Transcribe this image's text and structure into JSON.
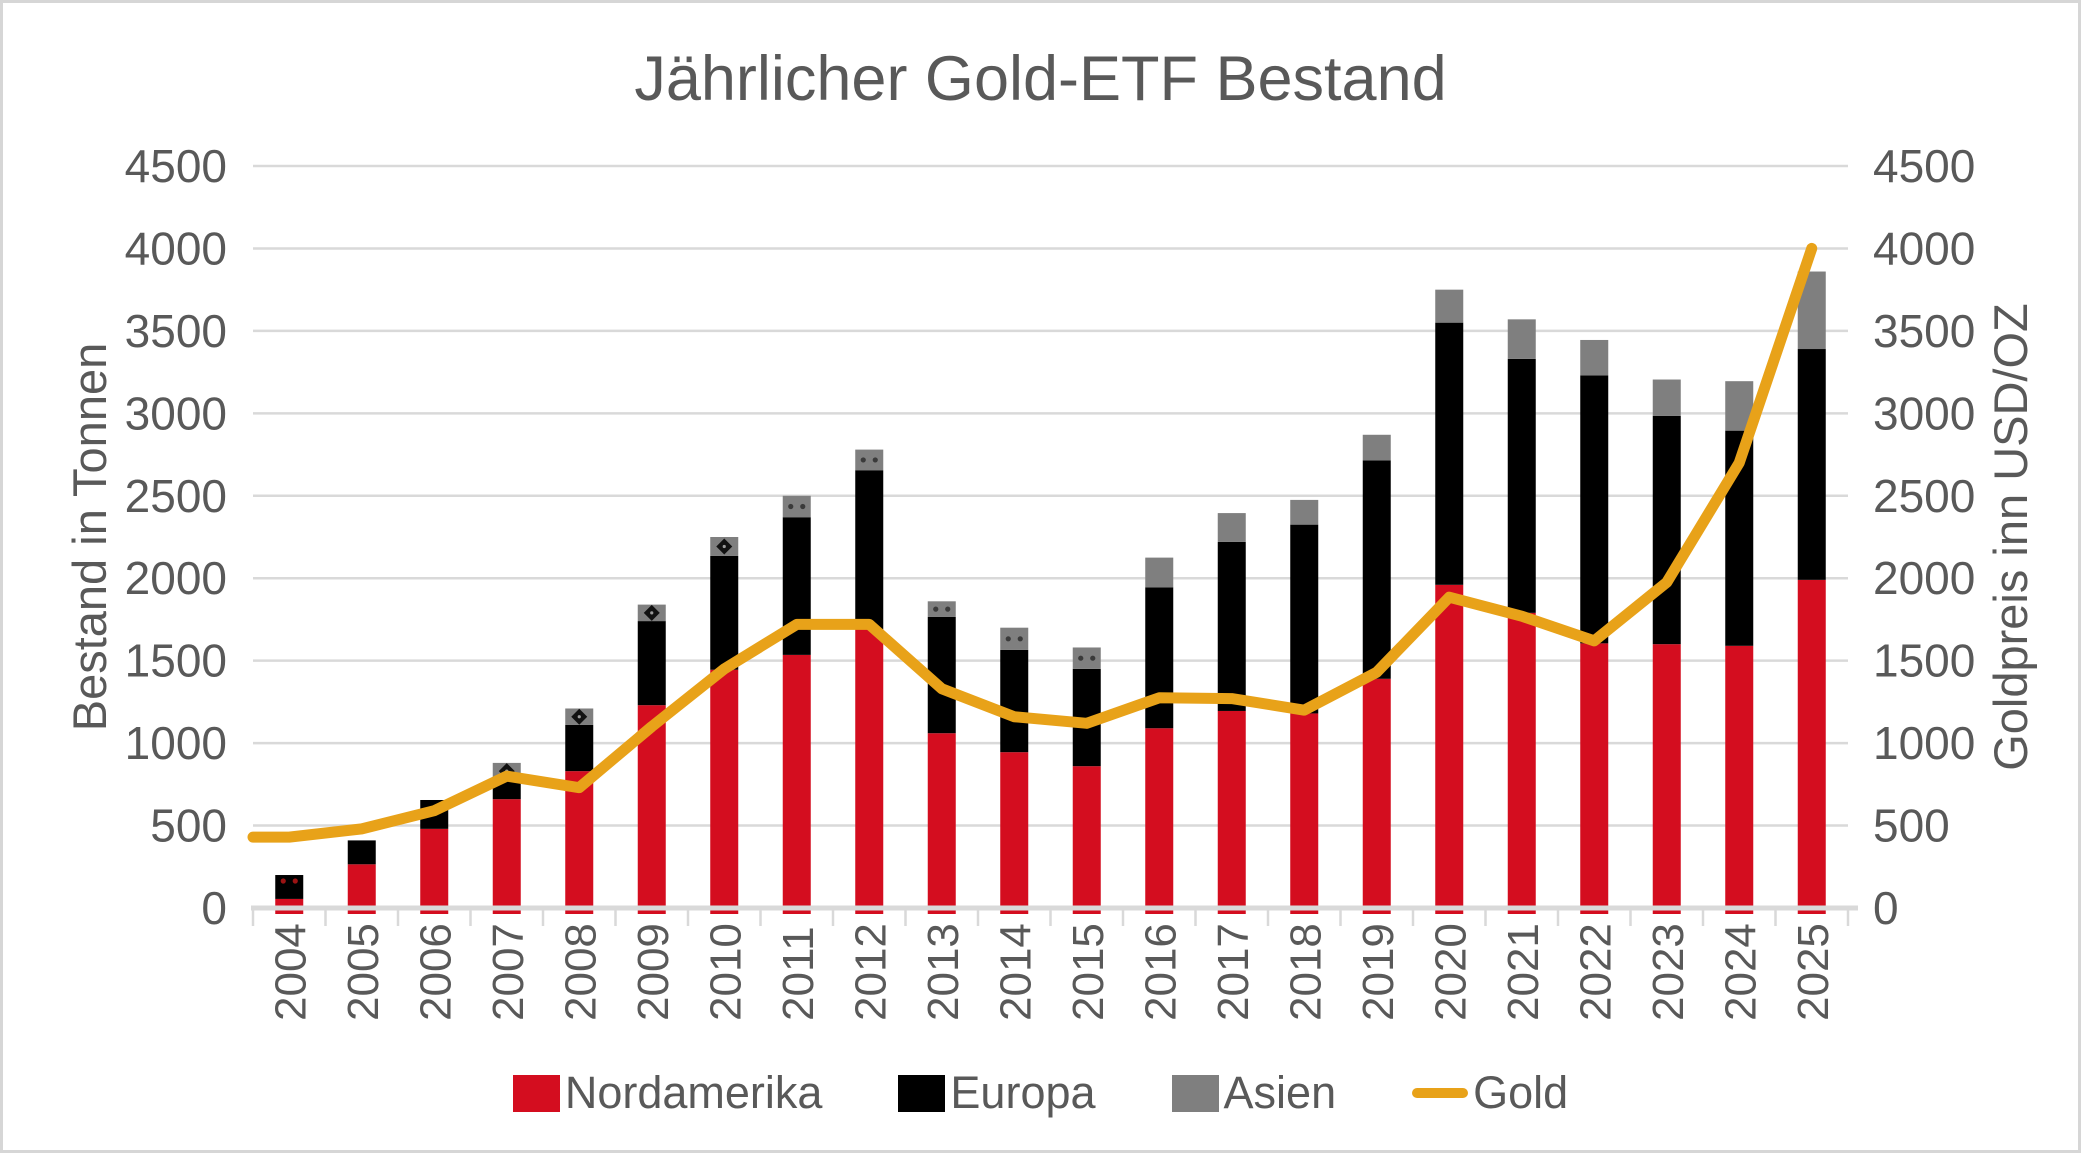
{
  "title": "Jährlicher Gold-ETF Bestand",
  "axes": {
    "left_title": "Bestand in Tonnen",
    "right_title": "Goldpreis inn USD/OZ"
  },
  "legend": {
    "items": [
      {
        "label": "Nordamerika",
        "color": "#D40D1F",
        "type": "box"
      },
      {
        "label": "Europa",
        "color": "#000000",
        "type": "box"
      },
      {
        "label": "Asien",
        "color": "#7F7F7F",
        "type": "box"
      },
      {
        "label": "Gold",
        "color": "#E8A219",
        "type": "line"
      }
    ]
  },
  "colors": {
    "background": "#FFFFFF",
    "frame_border": "#D6D6D6",
    "gridline": "#D9D9D9",
    "text": "#595959",
    "nordamerika": "#D40D1F",
    "europa": "#000000",
    "asien": "#7F7F7F",
    "gold": "#E8A219"
  },
  "chart_data": {
    "type": "bar",
    "subtype": "stacked-bar-with-line",
    "title": "Jährlicher Gold-ETF Bestand",
    "xlabel": "",
    "ylabel_left": "Bestand in Tonnen",
    "ylabel_right": "Goldpreis inn USD/OZ",
    "ylim": [
      0,
      4500
    ],
    "ylim_right": [
      0,
      4500
    ],
    "ytick_step": 500,
    "yticks": [
      0,
      500,
      1000,
      1500,
      2000,
      2500,
      3000,
      3500,
      4000,
      4500
    ],
    "grid": true,
    "legend_position": "bottom",
    "categories": [
      "2004",
      "2005",
      "2006",
      "2007",
      "2008",
      "2009",
      "2010",
      "2011",
      "2012",
      "2013",
      "2014",
      "2015",
      "2016",
      "2017",
      "2018",
      "2019",
      "2020",
      "2021",
      "2022",
      "2023",
      "2024",
      "2025"
    ],
    "series": [
      {
        "name": "Nordamerika",
        "type": "bar",
        "stack": true,
        "color": "#D40D1F",
        "axis": "left",
        "values": [
          55,
          265,
          480,
          660,
          830,
          1230,
          1445,
          1535,
          1690,
          1060,
          945,
          860,
          1090,
          1195,
          1180,
          1390,
          1960,
          1790,
          1605,
          1600,
          1590,
          1990
        ]
      },
      {
        "name": "Europa",
        "type": "bar",
        "stack": true,
        "color": "#000000",
        "axis": "left",
        "values": [
          145,
          145,
          175,
          120,
          280,
          510,
          690,
          835,
          965,
          705,
          620,
          590,
          855,
          1025,
          1145,
          1325,
          1590,
          1540,
          1625,
          1385,
          1305,
          1400
        ]
      },
      {
        "name": "Asien",
        "type": "bar",
        "stack": true,
        "color": "#7F7F7F",
        "axis": "left",
        "values": [
          0,
          0,
          0,
          100,
          100,
          100,
          115,
          130,
          125,
          95,
          135,
          130,
          180,
          175,
          150,
          155,
          200,
          240,
          215,
          220,
          300,
          470
        ]
      },
      {
        "name": "Gold",
        "type": "line",
        "color": "#E8A219",
        "axis": "right",
        "values": [
          430,
          480,
          590,
          800,
          730,
          1100,
          1450,
          1720,
          1720,
          1330,
          1160,
          1120,
          1275,
          1270,
          1200,
          1430,
          1885,
          1770,
          1620,
          1975,
          2700,
          4000
        ]
      }
    ],
    "bar_top_markers": [
      "dots",
      "none",
      "none",
      "diamond",
      "diamond",
      "diamond",
      "diamond",
      "dots",
      "dots",
      "dots",
      "dots",
      "dots",
      "none",
      "none",
      "none",
      "none",
      "none",
      "none",
      "none",
      "none",
      "none",
      "none"
    ]
  }
}
